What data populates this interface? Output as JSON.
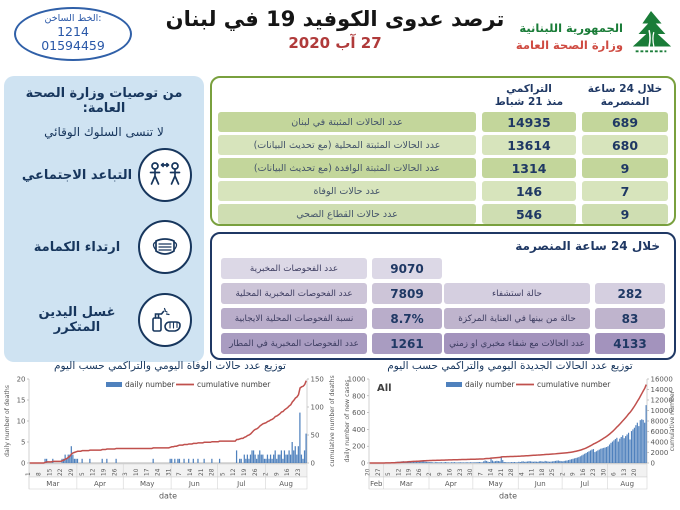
{
  "header": {
    "hotline": {
      "label": "الخط الساخن:",
      "number_short": "1214",
      "number_long": "01594459"
    },
    "title": "ترصد عدوى الكوفيد 19 في لبنان",
    "date": "27 آب 2020",
    "logo": {
      "line1": "الجمهورية اللبنانية",
      "line2": "وزارة الصحة العامة"
    }
  },
  "sidebar": {
    "title": "من توصيات وزارة الصحة العامة:",
    "subtitle": "لا تنسى السلوك الوقائي",
    "items": [
      {
        "label": "التباعد الاجتماعي",
        "icon": "social-distancing-icon"
      },
      {
        "label": "ارتداء الكمامة",
        "icon": "face-mask-icon"
      },
      {
        "label": "غسل اليدين المتكرر",
        "icon": "hand-washing-icon"
      }
    ]
  },
  "cumulative_table": {
    "header_24h": [
      "خلال 24 ساعة",
      "المنصرمة"
    ],
    "header_cum": [
      "التراكمي",
      "منذ 21 شباط"
    ],
    "rows": [
      {
        "label": "عدد الحالات المثبتة في لبنان",
        "cumulative": "14935",
        "last24h": "689"
      },
      {
        "label": "عدد الحالات المثبتة المحلية  (مع تحديث البيانات)",
        "cumulative": "13614",
        "last24h": "680"
      },
      {
        "label": "عدد الحالات المثبتة الوافدة (مع تحديث البيانات)",
        "cumulative": "1314",
        "last24h": "9"
      },
      {
        "label": "عدد حالات الوفاة",
        "cumulative": "146",
        "last24h": "7"
      },
      {
        "label": "عدد حالات القطاع الصحي",
        "cumulative": "546",
        "last24h": "9"
      }
    ]
  },
  "last24_table": {
    "header": "خلال 24 ساعة المنصرمة",
    "left_rows": [
      {
        "label": "عدد الفحوصات المخبرية",
        "value": "9070"
      },
      {
        "label": "عدد الفحوصات المخبرية المحلية",
        "value": "7809"
      },
      {
        "label": "نسبة الفحوصات المحلية الايجابية",
        "value": "8.7%"
      },
      {
        "label": "عدد الفحوصات المخبرية في المطار",
        "value": "1261"
      }
    ],
    "right_rows": [
      {
        "label": "حالة استشفاء",
        "value": "282"
      },
      {
        "label": "حالة من بينها في العناية المركزة",
        "value": "83"
      },
      {
        "label": "عدد الحالات مع شفاء مخبري او زمني",
        "value": "4133"
      }
    ]
  },
  "colors": {
    "green_border": "#79a03e",
    "green_row_shades": [
      "#c3d69b",
      "#d7e4bc",
      "#c3d69b",
      "#d7e4bc",
      "#cfdeb2"
    ],
    "blue_border": "#1f3864",
    "blue_left_shades": [
      "#dcd8e6",
      "#cdc5d8",
      "#b9adca",
      "#a99cc1"
    ],
    "blue_right_shades": [
      "#d5cfe0",
      "#bfb4cd",
      "#a393bd"
    ],
    "value_text": "#1f3864",
    "date_red": "#b03a3a",
    "sidebar_bg": "#cfe3f2",
    "sidebar_navy": "#17365d",
    "cedar_green": "#1a7c38",
    "bar_blue": "#4f81bd",
    "line_red": "#c0504d"
  },
  "chart_data": [
    {
      "type": "bar",
      "title": "توزيع عدد حالات  الوفاة اليومي والتراكمي حسب اليوم",
      "legend": [
        "daily number",
        "cumulative number"
      ],
      "xlabel": "date",
      "ylabel_left": "daily number of deaths",
      "ylabel_right": "cumulative number of deaths",
      "ylim_left": [
        0,
        20
      ],
      "yticks_left": [
        0,
        5,
        10,
        15,
        20
      ],
      "ylim_right": [
        0,
        150
      ],
      "yticks_right": [
        0,
        50,
        100,
        150
      ],
      "x_tick_labels": [
        "1",
        "8",
        "15",
        "22",
        "29",
        "5",
        "12",
        "19",
        "26",
        "3",
        "10",
        "17",
        "24",
        "31",
        "7",
        "14",
        "21",
        "28",
        "5",
        "12",
        "19",
        "26",
        "2",
        "9",
        "16",
        "23"
      ],
      "x_tick_idx": [
        0,
        7,
        14,
        21,
        28,
        35,
        42,
        49,
        56,
        63,
        70,
        77,
        84,
        91,
        98,
        105,
        112,
        119,
        126,
        133,
        140,
        147,
        154,
        161,
        168,
        175
      ],
      "months": [
        {
          "label": "Mar",
          "start": 0,
          "end": 31
        },
        {
          "label": "Apr",
          "start": 31,
          "end": 61
        },
        {
          "label": "May",
          "start": 61,
          "end": 92
        },
        {
          "label": "Jun",
          "start": 92,
          "end": 122
        },
        {
          "label": "Jul",
          "start": 122,
          "end": 153
        },
        {
          "label": "Aug",
          "start": 153,
          "end": 180
        }
      ],
      "daily_values": [
        0,
        0,
        0,
        0,
        0,
        0,
        0,
        0,
        0,
        0,
        1,
        1,
        0,
        0,
        0,
        1,
        0,
        0,
        0,
        0,
        0,
        1,
        1,
        2,
        1,
        2,
        2,
        4,
        2,
        1,
        1,
        1,
        0,
        0,
        1,
        0,
        0,
        0,
        0,
        1,
        0,
        0,
        0,
        0,
        0,
        0,
        0,
        1,
        0,
        0,
        1,
        0,
        0,
        0,
        0,
        0,
        1,
        0,
        0,
        0,
        0,
        0,
        0,
        0,
        0,
        0,
        0,
        0,
        0,
        0,
        0,
        0,
        0,
        0,
        0,
        0,
        0,
        0,
        0,
        0,
        1,
        0,
        0,
        0,
        0,
        0,
        0,
        0,
        0,
        0,
        0,
        1,
        1,
        0,
        1,
        0,
        1,
        1,
        0,
        0,
        1,
        0,
        0,
        1,
        0,
        0,
        1,
        0,
        0,
        1,
        0,
        0,
        0,
        1,
        0,
        0,
        0,
        0,
        1,
        0,
        0,
        0,
        0,
        1,
        0,
        0,
        0,
        0,
        0,
        0,
        0,
        0,
        0,
        0,
        3,
        0,
        1,
        1,
        0,
        2,
        1,
        2,
        1,
        2,
        3,
        3,
        2,
        1,
        2,
        3,
        2,
        2,
        1,
        1,
        2,
        1,
        2,
        1,
        2,
        3,
        1,
        2,
        2,
        3,
        1,
        3,
        2,
        2,
        3,
        2,
        5,
        3,
        4,
        2,
        4,
        12,
        2,
        1,
        3,
        7
      ],
      "cumulative_total": 146,
      "bar_color": "#4f81bd",
      "line_color": "#c0504d"
    },
    {
      "type": "bar",
      "title": "توزيع عدد الحالات الجديدة اليومي والتراكمي حسب اليوم",
      "all_label": "All",
      "legend": [
        "daily number",
        "cumulative number"
      ],
      "xlabel": "date",
      "ylabel_left": "daily number of new cases",
      "ylabel_right": "cumulative number",
      "ylim_left": [
        0,
        1000
      ],
      "yticks_left": [
        0,
        200,
        400,
        600,
        800,
        1000
      ],
      "ylim_right": [
        0,
        16000
      ],
      "yticks_right": [
        0,
        2000,
        4000,
        6000,
        8000,
        10000,
        12000,
        14000,
        16000
      ],
      "x_tick_labels": [
        "20",
        "27",
        "5",
        "12",
        "19",
        "26",
        "2",
        "9",
        "16",
        "23",
        "30",
        "7",
        "14",
        "21",
        "28",
        "4",
        "11",
        "18",
        "25",
        "2",
        "9",
        "16",
        "23",
        "30",
        "6",
        "13",
        "20"
      ],
      "x_tick_idx": [
        0,
        7,
        14,
        21,
        28,
        35,
        42,
        49,
        56,
        63,
        70,
        77,
        84,
        91,
        98,
        105,
        112,
        119,
        126,
        133,
        140,
        147,
        154,
        161,
        168,
        175,
        182
      ],
      "months": [
        {
          "label": "Feb",
          "start": 0,
          "end": 10
        },
        {
          "label": "Mar",
          "start": 10,
          "end": 41
        },
        {
          "label": "Apr",
          "start": 41,
          "end": 71
        },
        {
          "label": "May",
          "start": 71,
          "end": 102
        },
        {
          "label": "Jun",
          "start": 102,
          "end": 132
        },
        {
          "label": "Jul",
          "start": 132,
          "end": 163
        },
        {
          "label": "Aug",
          "start": 163,
          "end": 190
        }
      ],
      "daily_values": [
        1,
        0,
        1,
        1,
        0,
        2,
        1,
        0,
        2,
        2,
        2,
        3,
        4,
        5,
        6,
        8,
        10,
        12,
        14,
        15,
        17,
        18,
        20,
        22,
        15,
        18,
        20,
        25,
        22,
        20,
        18,
        15,
        12,
        14,
        16,
        18,
        20,
        22,
        15,
        14,
        12,
        10,
        12,
        8,
        6,
        9,
        11,
        7,
        8,
        10,
        6,
        9,
        12,
        8,
        7,
        6,
        9,
        8,
        10,
        7,
        6,
        8,
        9,
        7,
        8,
        6,
        9,
        8,
        7,
        9,
        8,
        7,
        9,
        8,
        10,
        12,
        9,
        8,
        20,
        30,
        25,
        15,
        12,
        50,
        30,
        18,
        22,
        26,
        24,
        20,
        80,
        35,
        12,
        10,
        9,
        8,
        9,
        11,
        10,
        12,
        9,
        8,
        15,
        12,
        18,
        20,
        14,
        16,
        18,
        22,
        20,
        17,
        15,
        18,
        16,
        14,
        20,
        22,
        18,
        16,
        25,
        20,
        18,
        15,
        17,
        19,
        22,
        25,
        28,
        30,
        25,
        22,
        20,
        25,
        28,
        30,
        35,
        40,
        45,
        50,
        55,
        60,
        65,
        70,
        80,
        90,
        100,
        110,
        120,
        130,
        140,
        150,
        160,
        166,
        130,
        140,
        150,
        160,
        170,
        175,
        180,
        185,
        190,
        200,
        220,
        240,
        255,
        270,
        285,
        300,
        255,
        290,
        310,
        330,
        295,
        320,
        340,
        360,
        280,
        380,
        400,
        420,
        450,
        480,
        439,
        510,
        520,
        513,
        480,
        689
      ],
      "cumulative_total": 14935,
      "bar_color": "#4f81bd",
      "line_color": "#c0504d"
    }
  ]
}
